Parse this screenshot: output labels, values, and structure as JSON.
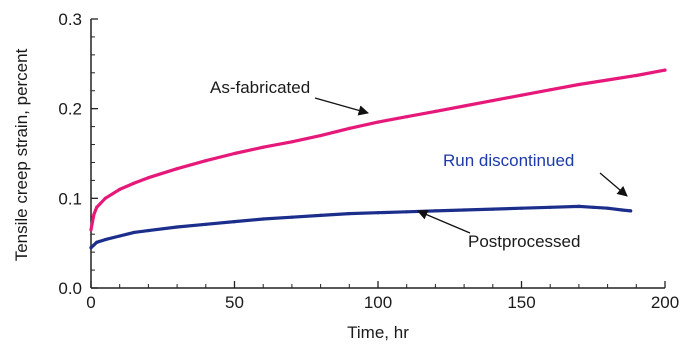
{
  "chart_data": {
    "type": "line",
    "title": "",
    "xlabel": "Time, hr",
    "ylabel": "Tensile creep strain, percent",
    "xlim": [
      0,
      200
    ],
    "ylim": [
      0,
      0.3
    ],
    "xticks": [
      0,
      50,
      100,
      150,
      200
    ],
    "xtick_labels": [
      "0",
      "50",
      "100",
      "150",
      "200"
    ],
    "yticks": [
      0,
      0.1,
      0.2,
      0.3
    ],
    "ytick_labels": [
      "0.0",
      "0.1",
      "0.2",
      "0.3"
    ],
    "grid": false,
    "series": [
      {
        "name": "As-fabricated",
        "color": "#e6197a",
        "x": [
          0,
          1,
          2,
          5,
          10,
          15,
          20,
          30,
          40,
          50,
          60,
          70,
          80,
          90,
          100,
          110,
          120,
          130,
          140,
          150,
          160,
          170,
          180,
          190,
          200
        ],
        "y": [
          0.065,
          0.082,
          0.09,
          0.1,
          0.11,
          0.117,
          0.123,
          0.133,
          0.142,
          0.15,
          0.157,
          0.163,
          0.17,
          0.178,
          0.185,
          0.191,
          0.197,
          0.203,
          0.209,
          0.215,
          0.221,
          0.227,
          0.232,
          0.237,
          0.243
        ]
      },
      {
        "name": "Postprocessed",
        "color": "#1c2e8c",
        "x": [
          0,
          1,
          2,
          5,
          10,
          15,
          20,
          30,
          40,
          50,
          60,
          70,
          80,
          90,
          100,
          110,
          120,
          130,
          140,
          150,
          160,
          170,
          175,
          180,
          185,
          188
        ],
        "y": [
          0.045,
          0.048,
          0.051,
          0.054,
          0.058,
          0.062,
          0.064,
          0.068,
          0.071,
          0.074,
          0.077,
          0.079,
          0.081,
          0.083,
          0.084,
          0.085,
          0.086,
          0.087,
          0.088,
          0.089,
          0.09,
          0.091,
          0.09,
          0.089,
          0.087,
          0.086
        ]
      }
    ],
    "annotations": [
      {
        "text": "As-fabricated",
        "color": "#1a1a1a"
      },
      {
        "text": "Run discontinued",
        "color": "#1c3aa9"
      },
      {
        "text": "Postprocessed",
        "color": "#1a1a1a"
      }
    ]
  }
}
